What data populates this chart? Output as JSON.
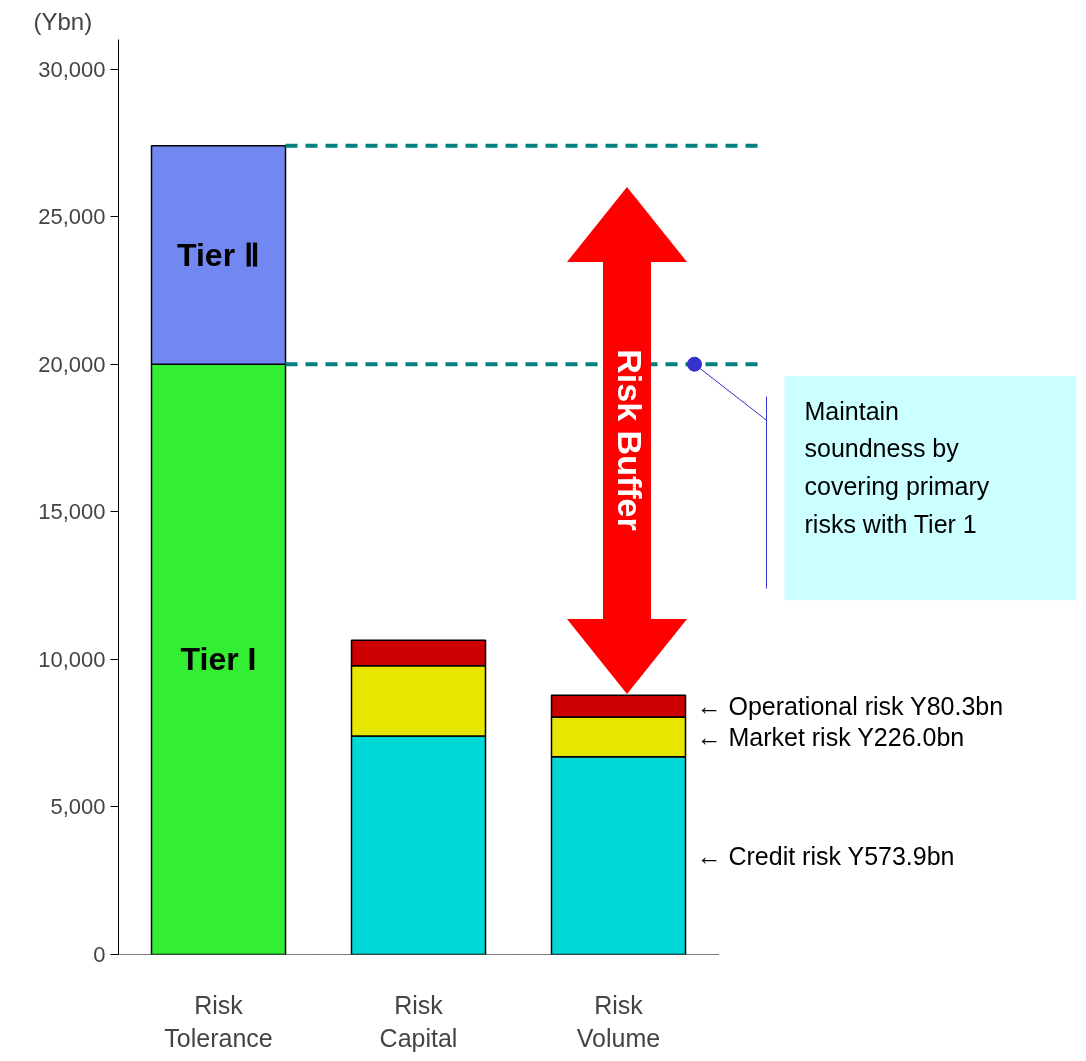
{
  "chart_data": {
    "type": "bar",
    "stacked": true,
    "ylabel": "(Ybn)",
    "categories": [
      "Risk\nTolerance",
      "Risk\nCapital",
      "Risk\nVolume"
    ],
    "series": [
      {
        "name": "Tier I",
        "color": "#33ee33",
        "values": [
          20000,
          null,
          null
        ]
      },
      {
        "name": "Tier Ⅱ",
        "color": "#7088f0",
        "values": [
          7400,
          null,
          null
        ]
      },
      {
        "color": "#00d8d8",
        "values": [
          null,
          7400,
          6700
        ]
      },
      {
        "color": "#e6e600",
        "values": [
          null,
          2380,
          1350
        ]
      },
      {
        "color": "#cc0000",
        "values": [
          null,
          870,
          730
        ]
      }
    ],
    "ylim": [
      0,
      31000
    ],
    "yticks": [
      {
        "value": 0,
        "label": "0"
      },
      {
        "value": 5000,
        "label": "5,000"
      },
      {
        "value": 10000,
        "label": "10,000"
      },
      {
        "value": 15000,
        "label": "15,000"
      },
      {
        "value": 20000,
        "label": "20,000"
      },
      {
        "value": 25000,
        "label": "25,000"
      },
      {
        "value": 30000,
        "label": "30,000"
      }
    ],
    "ref_lines": [
      {
        "axis": "y",
        "value": 27400,
        "color": "#008080",
        "line_style": "dashed"
      },
      {
        "axis": "y",
        "value": 20000,
        "color": "#008080",
        "line_style": "dashed"
      }
    ],
    "annotations": [
      "Risk Buffer",
      "Maintain\nsoundness by\ncovering primary\nrisks with Tier 1",
      "← Operational risk Y80.3bn",
      "← Market risk  Y226.0bn",
      "← Credit risk Y573.9bn"
    ],
    "grid": false
  }
}
